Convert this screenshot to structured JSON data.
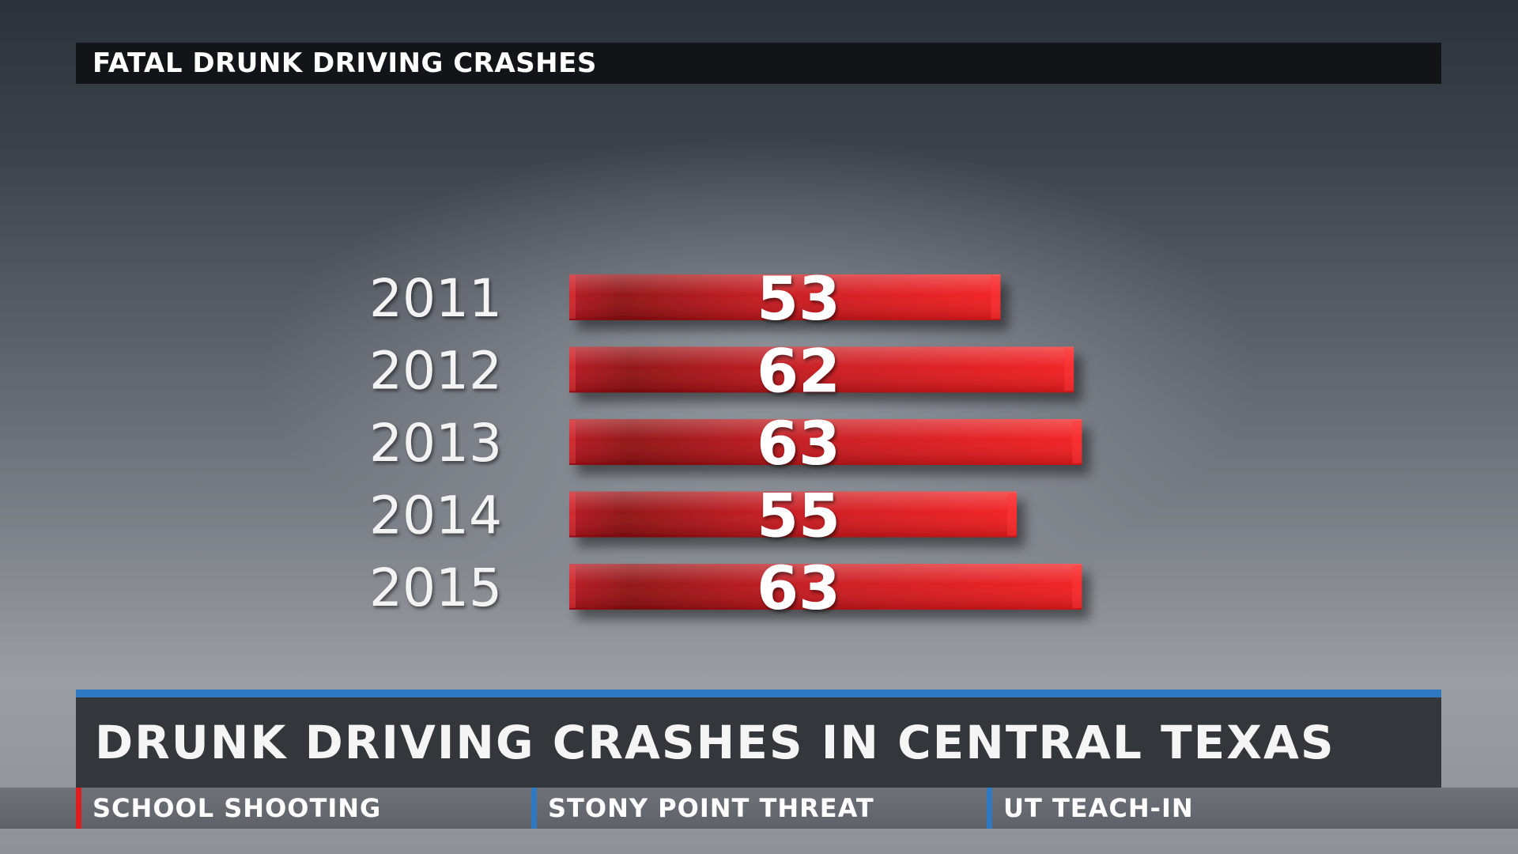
{
  "header": {
    "title": "FATAL DRUNK DRIVING CRASHES"
  },
  "lower_third": {
    "headline": "DRUNK DRIVING CRASHES IN CENTRAL TEXAS"
  },
  "ticker": {
    "items": [
      {
        "label": "SCHOOL SHOOTING",
        "accent": "#e01c1c"
      },
      {
        "label": "STONY POINT THREAT",
        "accent": "#2f78c2"
      },
      {
        "label": "UT TEACH-IN",
        "accent": "#2f78c2"
      }
    ]
  },
  "colors": {
    "bar": "#d8191c",
    "bar_dark": "#8e0c0e",
    "title_bar": "#121417",
    "accent_blue": "#2f78c2"
  },
  "chart_data": {
    "type": "bar",
    "orientation": "horizontal",
    "title": "FATAL DRUNK DRIVING CRASHES",
    "categories": [
      "2011",
      "2012",
      "2013",
      "2014",
      "2015"
    ],
    "values": [
      53,
      62,
      63,
      55,
      63
    ],
    "xlabel": "",
    "ylabel": "",
    "grid": false,
    "data_labels": true
  }
}
